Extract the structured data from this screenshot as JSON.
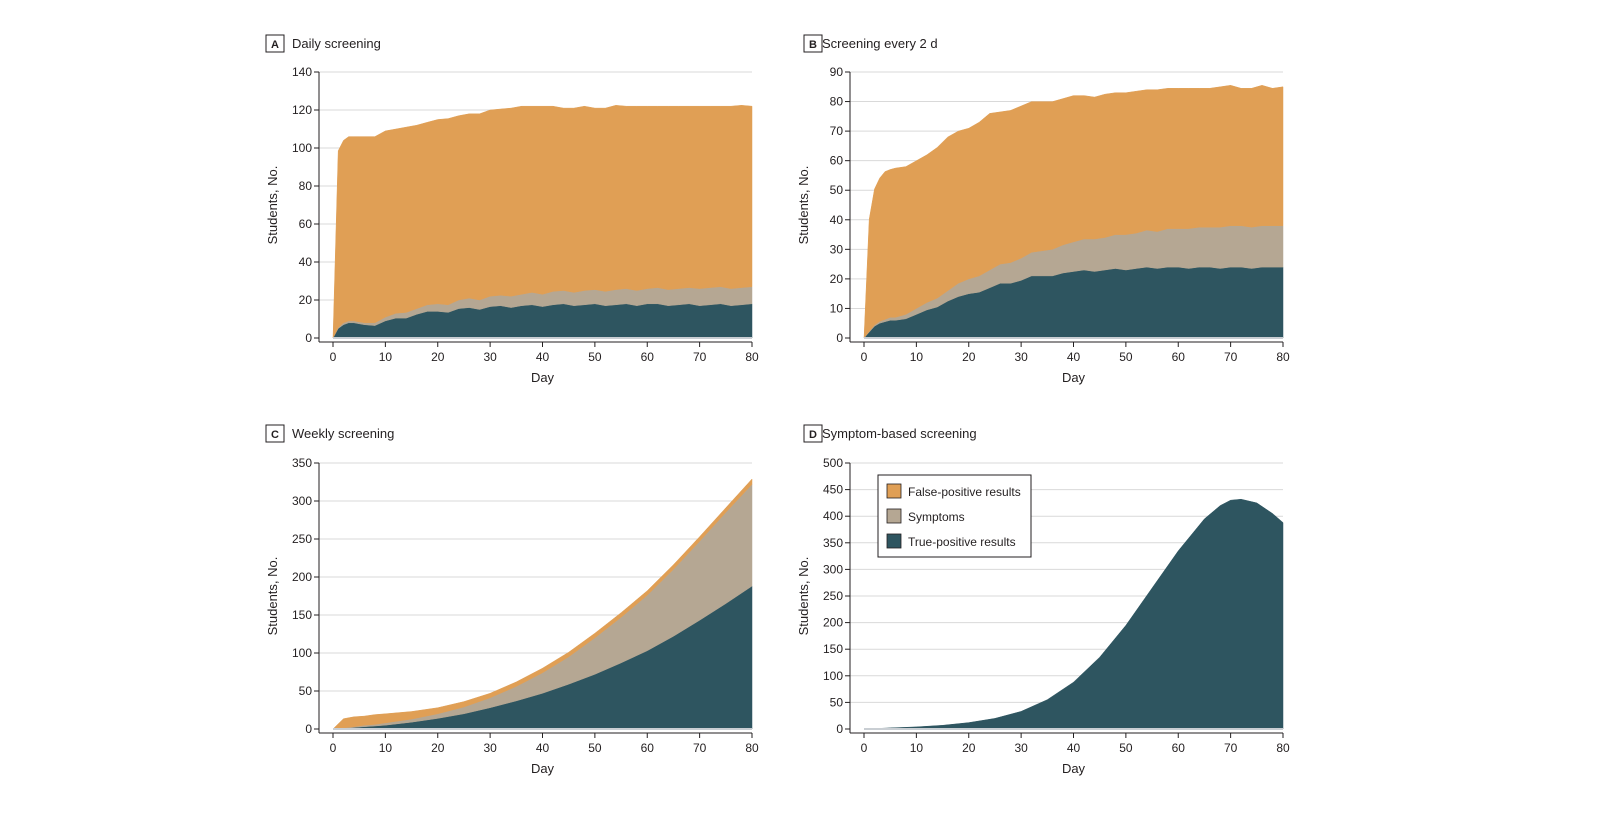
{
  "figure": {
    "legend": [
      {
        "label": "False-positive results",
        "color": "#e09f55"
      },
      {
        "label": "Symptoms",
        "color": "#b5a793"
      },
      {
        "label": "True-positive results",
        "color": "#2e5560"
      }
    ]
  },
  "chart_data": [
    {
      "type": "area",
      "panel": "A",
      "title": "Daily screening",
      "xlabel": "Day",
      "ylabel": "Students, No.",
      "xlim": [
        0,
        80
      ],
      "ylim": [
        0,
        140
      ],
      "xticks": [
        0,
        10,
        20,
        30,
        40,
        50,
        60,
        70,
        80
      ],
      "yticks": [
        0,
        20,
        40,
        60,
        80,
        100,
        120,
        140
      ],
      "stacked": true,
      "x": [
        0,
        1,
        2,
        3,
        4,
        5,
        6,
        8,
        10,
        12,
        14,
        16,
        18,
        20,
        22,
        24,
        26,
        28,
        30,
        32,
        34,
        36,
        38,
        40,
        42,
        44,
        46,
        48,
        50,
        52,
        54,
        56,
        58,
        60,
        62,
        64,
        66,
        68,
        70,
        72,
        74,
        76,
        78,
        80
      ],
      "series": [
        {
          "name": "True-positive results",
          "color": "#2e5560",
          "values": [
            0,
            5,
            7,
            8,
            8,
            7.5,
            7,
            6.5,
            9,
            10.5,
            10.5,
            12.5,
            14,
            14,
            13.5,
            15.5,
            16,
            15,
            16.5,
            17,
            16,
            17,
            17.5,
            16.5,
            17.5,
            18,
            17,
            17.5,
            18,
            17,
            17.5,
            18,
            17,
            18,
            18,
            17,
            17.5,
            18,
            17,
            17.5,
            18,
            17,
            17.5,
            18
          ]
        },
        {
          "name": "Symptoms",
          "color": "#b5a793",
          "values": [
            0,
            0.5,
            1,
            1,
            1,
            1,
            1,
            1.5,
            2,
            2.5,
            3,
            3,
            3.5,
            4,
            4,
            4.5,
            5,
            5,
            5.5,
            5.5,
            6,
            6,
            6.5,
            6.5,
            7,
            7,
            7,
            7.5,
            7.5,
            7.5,
            8,
            8,
            8,
            8,
            8.5,
            8.5,
            8.5,
            8.5,
            9,
            9,
            9,
            9,
            9,
            9
          ]
        },
        {
          "name": "False-positive results",
          "color": "#e09f55",
          "values": [
            0,
            93,
            96,
            97,
            97,
            97.5,
            98,
            98,
            98,
            97,
            97.5,
            96.5,
            96,
            97,
            98,
            97,
            97,
            98,
            98,
            98,
            99,
            99,
            98,
            99,
            97.5,
            96,
            97,
            97,
            95.5,
            96.5,
            97,
            96,
            97,
            96,
            95.5,
            96.5,
            96,
            95.5,
            96,
            95.5,
            95,
            96,
            96,
            95
          ]
        }
      ]
    },
    {
      "type": "area",
      "panel": "B",
      "title": "Screening every 2 d",
      "xlabel": "Day",
      "ylabel": "Students, No.",
      "xlim": [
        0,
        80
      ],
      "ylim": [
        0,
        90
      ],
      "xticks": [
        0,
        10,
        20,
        30,
        40,
        50,
        60,
        70,
        80
      ],
      "yticks": [
        0,
        10,
        20,
        30,
        40,
        50,
        60,
        70,
        80,
        90
      ],
      "stacked": true,
      "x": [
        0,
        1,
        2,
        3,
        4,
        5,
        6,
        8,
        10,
        12,
        14,
        16,
        18,
        20,
        22,
        24,
        26,
        28,
        30,
        32,
        34,
        36,
        38,
        40,
        42,
        44,
        46,
        48,
        50,
        52,
        54,
        56,
        58,
        60,
        62,
        64,
        66,
        68,
        70,
        72,
        74,
        76,
        78,
        80
      ],
      "series": [
        {
          "name": "True-positive results",
          "color": "#2e5560",
          "values": [
            0,
            2,
            4,
            5,
            5.5,
            6,
            6,
            6.5,
            8,
            9.5,
            10.5,
            12.5,
            14,
            15,
            15.5,
            17,
            18.5,
            18.5,
            19.5,
            21,
            21,
            21,
            22,
            22.5,
            23,
            22.5,
            23,
            23.5,
            23,
            23.5,
            24,
            23.5,
            24,
            24,
            23.5,
            24,
            24,
            23.5,
            24,
            24,
            23.5,
            24,
            24,
            24
          ]
        },
        {
          "name": "Symptoms",
          "color": "#b5a793",
          "values": [
            0,
            0.2,
            0.4,
            0.6,
            0.8,
            1,
            1,
            1.5,
            2,
            2.5,
            3,
            3.5,
            4.5,
            5,
            5.5,
            6,
            6.5,
            7,
            7.5,
            8,
            8.5,
            9,
            9.5,
            10,
            10.5,
            11,
            11,
            11.5,
            12,
            12,
            12.5,
            12.5,
            13,
            13,
            13.5,
            13.5,
            13.5,
            14,
            14,
            14,
            14,
            14,
            14,
            14
          ]
        },
        {
          "name": "False-positive results",
          "color": "#e09f55",
          "values": [
            0,
            38,
            46,
            48.5,
            50,
            50,
            50.5,
            50,
            50,
            50,
            51,
            52,
            51.5,
            51,
            52,
            53,
            51.5,
            51.5,
            51.5,
            51,
            50.5,
            50,
            49.5,
            49.5,
            48.5,
            48,
            48.5,
            48,
            48,
            48,
            47.5,
            48,
            47.5,
            47.5,
            47.5,
            47,
            47,
            47.5,
            47.5,
            46.5,
            47,
            47.5,
            46.5,
            47
          ]
        }
      ]
    },
    {
      "type": "area",
      "panel": "C",
      "title": "Weekly screening",
      "xlabel": "Day",
      "ylabel": "Students, No.",
      "xlim": [
        0,
        80
      ],
      "ylim": [
        0,
        350
      ],
      "xticks": [
        0,
        10,
        20,
        30,
        40,
        50,
        60,
        70,
        80
      ],
      "yticks": [
        0,
        50,
        100,
        150,
        200,
        250,
        300,
        350
      ],
      "stacked": true,
      "x": [
        0,
        2,
        4,
        6,
        8,
        10,
        15,
        20,
        25,
        30,
        35,
        40,
        45,
        50,
        55,
        60,
        65,
        70,
        75,
        80
      ],
      "series": [
        {
          "name": "True-positive results",
          "color": "#2e5560",
          "values": [
            0,
            1,
            2,
            3,
            4,
            5,
            9,
            14,
            20,
            28,
            37,
            47,
            59,
            72,
            87,
            103,
            122,
            143,
            165,
            188
          ]
        },
        {
          "name": "Symptoms",
          "color": "#b5a793",
          "values": [
            0,
            0.5,
            1,
            2,
            2,
            3,
            4,
            6,
            9,
            13,
            19,
            27,
            36,
            48,
            60,
            73,
            88,
            104,
            120,
            134
          ]
        },
        {
          "name": "False-positive results",
          "color": "#e09f55",
          "values": [
            0,
            12,
            13,
            12,
            13,
            12,
            10,
            8,
            7,
            6,
            6,
            6,
            6,
            6,
            6,
            6,
            6,
            6,
            6,
            7
          ]
        }
      ]
    },
    {
      "type": "area",
      "panel": "D",
      "title": "Symptom-based screening",
      "xlabel": "Day",
      "ylabel": "Students, No.",
      "xlim": [
        0,
        80
      ],
      "ylim": [
        0,
        500
      ],
      "xticks": [
        0,
        10,
        20,
        30,
        40,
        50,
        60,
        70,
        80
      ],
      "yticks": [
        0,
        50,
        100,
        150,
        200,
        250,
        300,
        350,
        400,
        450,
        500
      ],
      "legend_position": "top-left",
      "x": [
        0,
        5,
        10,
        15,
        20,
        25,
        30,
        35,
        40,
        45,
        50,
        55,
        60,
        65,
        68,
        70,
        72,
        75,
        78,
        80
      ],
      "series": [
        {
          "name": "True-positive results",
          "color": "#2e5560",
          "values": [
            0,
            2,
            4,
            7,
            12,
            20,
            33,
            55,
            88,
            135,
            195,
            265,
            335,
            395,
            420,
            430,
            432,
            425,
            405,
            388
          ]
        }
      ]
    }
  ]
}
